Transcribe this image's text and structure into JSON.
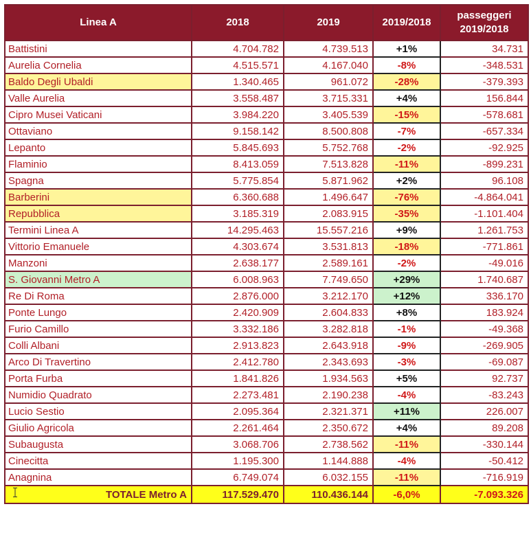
{
  "header": {
    "col_station": "Linea A",
    "col_2018": "2018",
    "col_2019": "2019",
    "col_ratio": "2019/2018",
    "col_delta_line1": "passeggeri",
    "col_delta_line2": "2019/2018"
  },
  "rows": [
    {
      "station": "Battistini",
      "y2018": "4.704.782",
      "y2019": "4.739.513",
      "pct": "+1%",
      "delta": "34.731",
      "hl": "",
      "sign": "pos"
    },
    {
      "station": "Aurelia Cornelia",
      "y2018": "4.515.571",
      "y2019": "4.167.040",
      "pct": "-8%",
      "delta": "-348.531",
      "hl": "",
      "sign": "neg"
    },
    {
      "station": "Baldo Degli Ubaldi",
      "y2018": "1.340.465",
      "y2019": "961.072",
      "pct": "-28%",
      "delta": "-379.393",
      "hl": "yellow",
      "sign": "neg"
    },
    {
      "station": "Valle Aurelia",
      "y2018": "3.558.487",
      "y2019": "3.715.331",
      "pct": "+4%",
      "delta": "156.844",
      "hl": "",
      "sign": "pos"
    },
    {
      "station": "Cipro Musei Vaticani",
      "y2018": "3.984.220",
      "y2019": "3.405.539",
      "pct": "-15%",
      "delta": "-578.681",
      "hl": "pctyellow",
      "sign": "neg"
    },
    {
      "station": "Ottaviano",
      "y2018": "9.158.142",
      "y2019": "8.500.808",
      "pct": "-7%",
      "delta": "-657.334",
      "hl": "",
      "sign": "neg"
    },
    {
      "station": "Lepanto",
      "y2018": "5.845.693",
      "y2019": "5.752.768",
      "pct": "-2%",
      "delta": "-92.925",
      "hl": "",
      "sign": "neg"
    },
    {
      "station": "Flaminio",
      "y2018": "8.413.059",
      "y2019": "7.513.828",
      "pct": "-11%",
      "delta": "-899.231",
      "hl": "pctyellow",
      "sign": "neg"
    },
    {
      "station": "Spagna",
      "y2018": "5.775.854",
      "y2019": "5.871.962",
      "pct": "+2%",
      "delta": "96.108",
      "hl": "",
      "sign": "pos"
    },
    {
      "station": "Barberini",
      "y2018": "6.360.688",
      "y2019": "1.496.647",
      "pct": "-76%",
      "delta": "-4.864.041",
      "hl": "yellow",
      "sign": "neg"
    },
    {
      "station": "Repubblica",
      "y2018": "3.185.319",
      "y2019": "2.083.915",
      "pct": "-35%",
      "delta": "-1.101.404",
      "hl": "yellow",
      "sign": "neg"
    },
    {
      "station": "Termini Linea A",
      "y2018": "14.295.463",
      "y2019": "15.557.216",
      "pct": "+9%",
      "delta": "1.261.753",
      "hl": "",
      "sign": "pos"
    },
    {
      "station": "Vittorio Emanuele",
      "y2018": "4.303.674",
      "y2019": "3.531.813",
      "pct": "-18%",
      "delta": "-771.861",
      "hl": "pctyellow",
      "sign": "neg"
    },
    {
      "station": "Manzoni",
      "y2018": "2.638.177",
      "y2019": "2.589.161",
      "pct": "-2%",
      "delta": "-49.016",
      "hl": "",
      "sign": "neg"
    },
    {
      "station": "S. Giovanni Metro A",
      "y2018": "6.008.963",
      "y2019": "7.749.650",
      "pct": "+29%",
      "delta": "1.740.687",
      "hl": "green",
      "sign": "pos"
    },
    {
      "station": "Re Di Roma",
      "y2018": "2.876.000",
      "y2019": "3.212.170",
      "pct": "+12%",
      "delta": "336.170",
      "hl": "pctgreen",
      "sign": "pos"
    },
    {
      "station": "Ponte Lungo",
      "y2018": "2.420.909",
      "y2019": "2.604.833",
      "pct": "+8%",
      "delta": "183.924",
      "hl": "",
      "sign": "pos"
    },
    {
      "station": "Furio Camillo",
      "y2018": "3.332.186",
      "y2019": "3.282.818",
      "pct": "-1%",
      "delta": "-49.368",
      "hl": "",
      "sign": "neg"
    },
    {
      "station": "Colli Albani",
      "y2018": "2.913.823",
      "y2019": "2.643.918",
      "pct": "-9%",
      "delta": "-269.905",
      "hl": "",
      "sign": "neg"
    },
    {
      "station": "Arco Di Travertino",
      "y2018": "2.412.780",
      "y2019": "2.343.693",
      "pct": "-3%",
      "delta": "-69.087",
      "hl": "",
      "sign": "neg"
    },
    {
      "station": "Porta Furba",
      "y2018": "1.841.826",
      "y2019": "1.934.563",
      "pct": "+5%",
      "delta": "92.737",
      "hl": "",
      "sign": "pos"
    },
    {
      "station": "Numidio Quadrato",
      "y2018": "2.273.481",
      "y2019": "2.190.238",
      "pct": "-4%",
      "delta": "-83.243",
      "hl": "",
      "sign": "neg"
    },
    {
      "station": "Lucio Sestio",
      "y2018": "2.095.364",
      "y2019": "2.321.371",
      "pct": "+11%",
      "delta": "226.007",
      "hl": "pctgreen",
      "sign": "pos"
    },
    {
      "station": "Giulio Agricola",
      "y2018": "2.261.464",
      "y2019": "2.350.672",
      "pct": "+4%",
      "delta": "89.208",
      "hl": "",
      "sign": "pos"
    },
    {
      "station": "Subaugusta",
      "y2018": "3.068.706",
      "y2019": "2.738.562",
      "pct": "-11%",
      "delta": "-330.144",
      "hl": "pctyellow",
      "sign": "neg"
    },
    {
      "station": "Cinecitta",
      "y2018": "1.195.300",
      "y2019": "1.144.888",
      "pct": "-4%",
      "delta": "-50.412",
      "hl": "",
      "sign": "neg"
    },
    {
      "station": "Anagnina",
      "y2018": "6.749.074",
      "y2019": "6.032.155",
      "pct": "-11%",
      "delta": "-716.919",
      "hl": "pctyellow",
      "sign": "neg"
    }
  ],
  "total": {
    "label": "TOTALE Metro A",
    "y2018": "117.529.470",
    "y2019": "110.436.144",
    "pct": "-6,0%",
    "delta": "-7.093.326"
  },
  "colors": {
    "header_bg": "#8b1a2b",
    "text_red": "#b11f27",
    "highlight_yellow": "#fff59a",
    "highlight_green": "#ccf2cc",
    "total_bg": "#ffff1a"
  }
}
